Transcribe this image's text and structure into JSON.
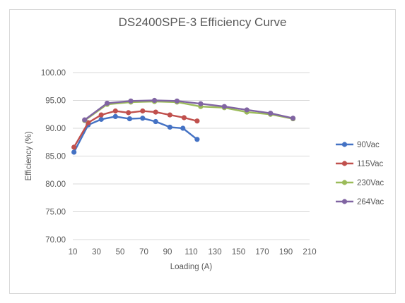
{
  "chart_data": {
    "type": "line",
    "title": "DS2400SPE-3 Efficiency Curve",
    "xlabel": "Loading (A)",
    "ylabel": "Efficiency (%)",
    "xlim": [
      10,
      210
    ],
    "ylim": [
      70,
      100
    ],
    "x_ticks": [
      "10",
      "30",
      "50",
      "70",
      "90",
      "110",
      "130",
      "150",
      "170",
      "190",
      "210"
    ],
    "y_ticks": [
      "70.00",
      "75.00",
      "80.00",
      "85.00",
      "90.00",
      "95.00",
      "100.00"
    ],
    "grid": "horizontal",
    "legend_position": "right",
    "series": [
      {
        "name": "90Vac",
        "color": "#4472c4",
        "x": [
          11,
          23,
          34,
          46,
          58,
          69,
          80,
          92,
          103,
          115
        ],
        "values": [
          85.7,
          90.6,
          91.6,
          92.1,
          91.7,
          91.8,
          91.2,
          90.2,
          90.0,
          88.0
        ]
      },
      {
        "name": "115Vac",
        "color": "#c0504d",
        "x": [
          11,
          23,
          34,
          46,
          57,
          69,
          80,
          92,
          104,
          115
        ],
        "values": [
          86.6,
          91.0,
          92.4,
          93.1,
          92.8,
          93.1,
          92.9,
          92.4,
          91.9,
          91.3
        ]
      },
      {
        "name": "230Vac",
        "color": "#9bbb59",
        "x": [
          20,
          39,
          59,
          79,
          98,
          118,
          138,
          157,
          177,
          196
        ],
        "values": [
          91.4,
          94.3,
          94.7,
          94.8,
          94.7,
          93.9,
          93.7,
          92.9,
          92.5,
          91.7
        ]
      },
      {
        "name": "264Vac",
        "color": "#8064a2",
        "x": [
          20,
          39,
          59,
          79,
          98,
          118,
          138,
          157,
          177,
          196
        ],
        "values": [
          91.5,
          94.5,
          94.9,
          95.0,
          94.9,
          94.4,
          93.9,
          93.3,
          92.7,
          91.8
        ]
      }
    ]
  }
}
